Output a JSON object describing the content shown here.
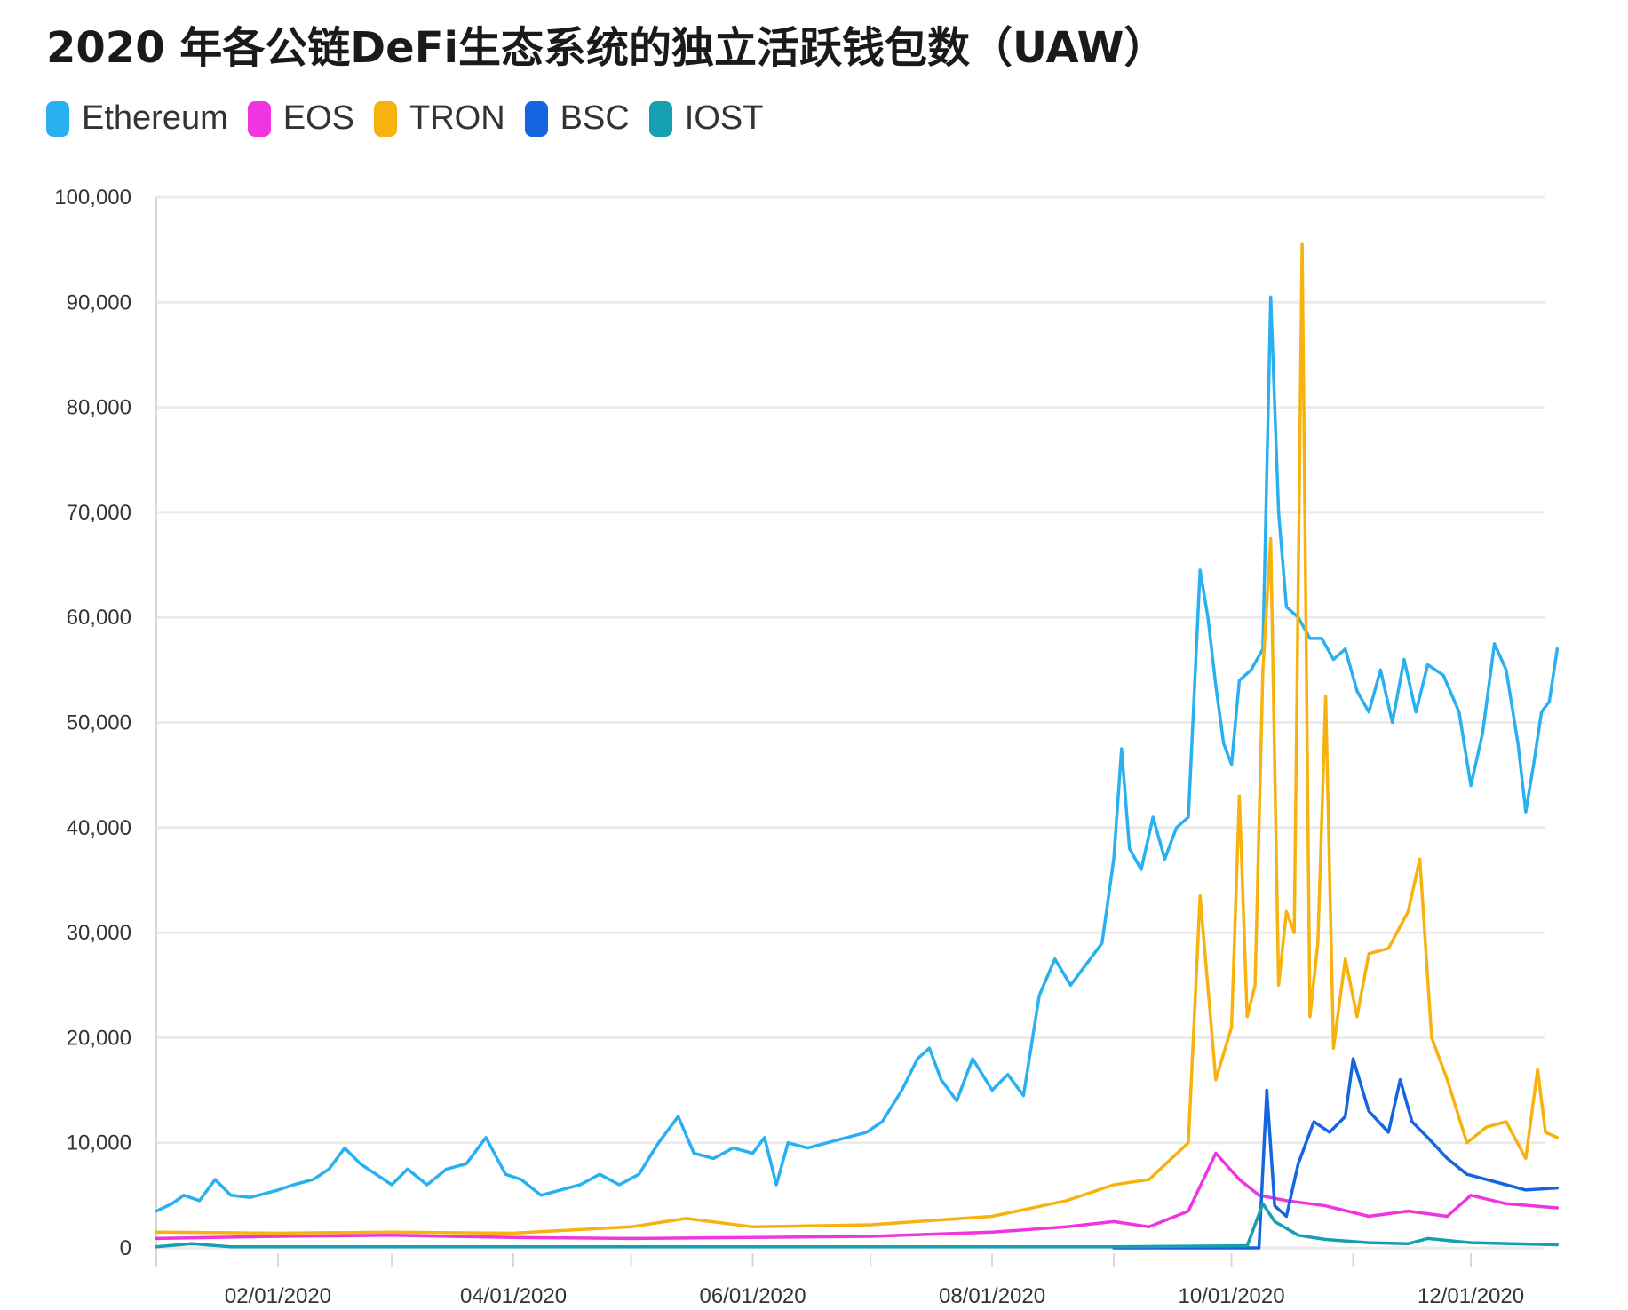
{
  "chart_data": {
    "type": "line",
    "title": "2020 年各公链DeFi生态系统的独立活跃钱包数（UAW）",
    "xlabel": "",
    "ylabel": "",
    "x_start": "2020-01-01",
    "x_end": "2020-12-20",
    "ylim": [
      0,
      100000
    ],
    "y_ticks": [
      0,
      10000,
      20000,
      30000,
      40000,
      50000,
      60000,
      70000,
      80000,
      90000,
      100000
    ],
    "y_tick_labels": [
      "0",
      "10,000",
      "20,000",
      "30,000",
      "40,000",
      "50,000",
      "60,000",
      "70,000",
      "80,000",
      "90,000",
      "100,000"
    ],
    "x_ticks": [
      "2020-02-01",
      "2020-04-01",
      "2020-06-01",
      "2020-08-01",
      "2020-10-01",
      "2020-12-01"
    ],
    "x_tick_labels": [
      "02/01/2020",
      "04/01/2020",
      "06/01/2020",
      "08/01/2020",
      "10/01/2020",
      "12/01/2020"
    ],
    "grid": true,
    "legend_position": "top-left",
    "series": [
      {
        "name": "Ethereum",
        "color": "#29b0f0",
        "points": [
          [
            "2020-01-01",
            3500
          ],
          [
            "2020-01-05",
            4200
          ],
          [
            "2020-01-08",
            5000
          ],
          [
            "2020-01-12",
            4500
          ],
          [
            "2020-01-16",
            6500
          ],
          [
            "2020-01-20",
            5000
          ],
          [
            "2020-01-25",
            4800
          ],
          [
            "2020-02-01",
            5500
          ],
          [
            "2020-02-05",
            6000
          ],
          [
            "2020-02-10",
            6500
          ],
          [
            "2020-02-14",
            7500
          ],
          [
            "2020-02-18",
            9500
          ],
          [
            "2020-02-22",
            8000
          ],
          [
            "2020-02-26",
            7000
          ],
          [
            "2020-03-01",
            6000
          ],
          [
            "2020-03-05",
            7500
          ],
          [
            "2020-03-10",
            6000
          ],
          [
            "2020-03-15",
            7500
          ],
          [
            "2020-03-20",
            8000
          ],
          [
            "2020-03-25",
            10500
          ],
          [
            "2020-03-30",
            7000
          ],
          [
            "2020-04-03",
            6500
          ],
          [
            "2020-04-08",
            5000
          ],
          [
            "2020-04-13",
            5500
          ],
          [
            "2020-04-18",
            6000
          ],
          [
            "2020-04-23",
            7000
          ],
          [
            "2020-04-28",
            6000
          ],
          [
            "2020-05-03",
            7000
          ],
          [
            "2020-05-08",
            10000
          ],
          [
            "2020-05-13",
            12500
          ],
          [
            "2020-05-17",
            9000
          ],
          [
            "2020-05-22",
            8500
          ],
          [
            "2020-05-27",
            9500
          ],
          [
            "2020-06-01",
            9000
          ],
          [
            "2020-06-04",
            10500
          ],
          [
            "2020-06-07",
            6000
          ],
          [
            "2020-06-10",
            10000
          ],
          [
            "2020-06-15",
            9500
          ],
          [
            "2020-06-20",
            10000
          ],
          [
            "2020-06-25",
            10500
          ],
          [
            "2020-06-30",
            11000
          ],
          [
            "2020-07-04",
            12000
          ],
          [
            "2020-07-09",
            15000
          ],
          [
            "2020-07-13",
            18000
          ],
          [
            "2020-07-16",
            19000
          ],
          [
            "2020-07-19",
            16000
          ],
          [
            "2020-07-23",
            14000
          ],
          [
            "2020-07-27",
            18000
          ],
          [
            "2020-08-01",
            15000
          ],
          [
            "2020-08-05",
            16500
          ],
          [
            "2020-08-09",
            14500
          ],
          [
            "2020-08-13",
            24000
          ],
          [
            "2020-08-17",
            27500
          ],
          [
            "2020-08-21",
            25000
          ],
          [
            "2020-08-25",
            27000
          ],
          [
            "2020-08-29",
            29000
          ],
          [
            "2020-09-01",
            37000
          ],
          [
            "2020-09-03",
            47500
          ],
          [
            "2020-09-05",
            38000
          ],
          [
            "2020-09-08",
            36000
          ],
          [
            "2020-09-11",
            41000
          ],
          [
            "2020-09-14",
            37000
          ],
          [
            "2020-09-17",
            40000
          ],
          [
            "2020-09-20",
            41000
          ],
          [
            "2020-09-23",
            64500
          ],
          [
            "2020-09-25",
            60000
          ],
          [
            "2020-09-27",
            53500
          ],
          [
            "2020-09-29",
            48000
          ],
          [
            "2020-10-01",
            46000
          ],
          [
            "2020-10-03",
            54000
          ],
          [
            "2020-10-06",
            55000
          ],
          [
            "2020-10-09",
            57000
          ],
          [
            "2020-10-11",
            90500
          ],
          [
            "2020-10-13",
            70000
          ],
          [
            "2020-10-15",
            61000
          ],
          [
            "2020-10-18",
            60000
          ],
          [
            "2020-10-21",
            58000
          ],
          [
            "2020-10-24",
            58000
          ],
          [
            "2020-10-27",
            56000
          ],
          [
            "2020-10-30",
            57000
          ],
          [
            "2020-11-02",
            53000
          ],
          [
            "2020-11-05",
            51000
          ],
          [
            "2020-11-08",
            55000
          ],
          [
            "2020-11-11",
            50000
          ],
          [
            "2020-11-14",
            56000
          ],
          [
            "2020-11-17",
            51000
          ],
          [
            "2020-11-20",
            55500
          ],
          [
            "2020-11-24",
            54500
          ],
          [
            "2020-11-28",
            51000
          ],
          [
            "2020-12-01",
            44000
          ],
          [
            "2020-12-04",
            49000
          ],
          [
            "2020-12-07",
            57500
          ],
          [
            "2020-12-10",
            55000
          ],
          [
            "2020-12-13",
            48000
          ],
          [
            "2020-12-15",
            41500
          ],
          [
            "2020-12-17",
            46000
          ],
          [
            "2020-12-19",
            51000
          ],
          [
            "2020-12-21",
            52000
          ],
          [
            "2020-12-23",
            57000
          ]
        ]
      },
      {
        "name": "EOS",
        "color": "#ef34e0",
        "points": [
          [
            "2020-01-01",
            900
          ],
          [
            "2020-02-01",
            1100
          ],
          [
            "2020-03-01",
            1200
          ],
          [
            "2020-04-01",
            1000
          ],
          [
            "2020-05-01",
            900
          ],
          [
            "2020-06-01",
            1000
          ],
          [
            "2020-07-01",
            1100
          ],
          [
            "2020-08-01",
            1500
          ],
          [
            "2020-08-20",
            2000
          ],
          [
            "2020-09-01",
            2500
          ],
          [
            "2020-09-10",
            2000
          ],
          [
            "2020-09-20",
            3500
          ],
          [
            "2020-09-27",
            9000
          ],
          [
            "2020-10-03",
            6500
          ],
          [
            "2020-10-08",
            5000
          ],
          [
            "2020-10-15",
            4500
          ],
          [
            "2020-10-25",
            4000
          ],
          [
            "2020-11-05",
            3000
          ],
          [
            "2020-11-15",
            3500
          ],
          [
            "2020-11-25",
            3000
          ],
          [
            "2020-12-01",
            5000
          ],
          [
            "2020-12-10",
            4200
          ],
          [
            "2020-12-23",
            3800
          ]
        ]
      },
      {
        "name": "TRON",
        "color": "#f7b20f",
        "points": [
          [
            "2020-01-01",
            1500
          ],
          [
            "2020-02-01",
            1400
          ],
          [
            "2020-03-01",
            1500
          ],
          [
            "2020-04-01",
            1400
          ],
          [
            "2020-05-01",
            2000
          ],
          [
            "2020-05-15",
            2800
          ],
          [
            "2020-06-01",
            2000
          ],
          [
            "2020-07-01",
            2200
          ],
          [
            "2020-08-01",
            3000
          ],
          [
            "2020-08-20",
            4500
          ],
          [
            "2020-09-01",
            6000
          ],
          [
            "2020-09-10",
            6500
          ],
          [
            "2020-09-20",
            10000
          ],
          [
            "2020-09-23",
            33500
          ],
          [
            "2020-09-27",
            16000
          ],
          [
            "2020-10-01",
            21000
          ],
          [
            "2020-10-03",
            43000
          ],
          [
            "2020-10-05",
            22000
          ],
          [
            "2020-10-07",
            25000
          ],
          [
            "2020-10-09",
            55000
          ],
          [
            "2020-10-11",
            67500
          ],
          [
            "2020-10-13",
            25000
          ],
          [
            "2020-10-15",
            32000
          ],
          [
            "2020-10-17",
            30000
          ],
          [
            "2020-10-19",
            95500
          ],
          [
            "2020-10-21",
            22000
          ],
          [
            "2020-10-23",
            29000
          ],
          [
            "2020-10-25",
            52500
          ],
          [
            "2020-10-27",
            19000
          ],
          [
            "2020-10-30",
            27500
          ],
          [
            "2020-11-02",
            22000
          ],
          [
            "2020-11-05",
            28000
          ],
          [
            "2020-11-10",
            28500
          ],
          [
            "2020-11-15",
            32000
          ],
          [
            "2020-11-18",
            37000
          ],
          [
            "2020-11-21",
            20000
          ],
          [
            "2020-11-25",
            16000
          ],
          [
            "2020-11-30",
            10000
          ],
          [
            "2020-12-05",
            11500
          ],
          [
            "2020-12-10",
            12000
          ],
          [
            "2020-12-15",
            8500
          ],
          [
            "2020-12-18",
            17000
          ],
          [
            "2020-12-20",
            11000
          ],
          [
            "2020-12-23",
            10500
          ]
        ]
      },
      {
        "name": "BSC",
        "color": "#1565e0",
        "points": [
          [
            "2020-09-01",
            0
          ],
          [
            "2020-10-08",
            0
          ],
          [
            "2020-10-10",
            15000
          ],
          [
            "2020-10-12",
            4000
          ],
          [
            "2020-10-15",
            3000
          ],
          [
            "2020-10-18",
            8000
          ],
          [
            "2020-10-22",
            12000
          ],
          [
            "2020-10-26",
            11000
          ],
          [
            "2020-10-30",
            12500
          ],
          [
            "2020-11-01",
            18000
          ],
          [
            "2020-11-05",
            13000
          ],
          [
            "2020-11-10",
            11000
          ],
          [
            "2020-11-13",
            16000
          ],
          [
            "2020-11-16",
            12000
          ],
          [
            "2020-11-20",
            10500
          ],
          [
            "2020-11-25",
            8500
          ],
          [
            "2020-11-30",
            7000
          ],
          [
            "2020-12-05",
            6500
          ],
          [
            "2020-12-10",
            6000
          ],
          [
            "2020-12-15",
            5500
          ],
          [
            "2020-12-23",
            5700
          ]
        ]
      },
      {
        "name": "IOST",
        "color": "#169fb0",
        "points": [
          [
            "2020-01-01",
            100
          ],
          [
            "2020-01-10",
            400
          ],
          [
            "2020-01-20",
            100
          ],
          [
            "2020-02-01",
            100
          ],
          [
            "2020-05-01",
            100
          ],
          [
            "2020-08-01",
            100
          ],
          [
            "2020-09-01",
            100
          ],
          [
            "2020-10-05",
            200
          ],
          [
            "2020-10-09",
            4200
          ],
          [
            "2020-10-12",
            2500
          ],
          [
            "2020-10-18",
            1200
          ],
          [
            "2020-10-25",
            800
          ],
          [
            "2020-11-05",
            500
          ],
          [
            "2020-11-15",
            400
          ],
          [
            "2020-11-20",
            900
          ],
          [
            "2020-12-01",
            500
          ],
          [
            "2020-12-23",
            300
          ]
        ]
      }
    ]
  }
}
